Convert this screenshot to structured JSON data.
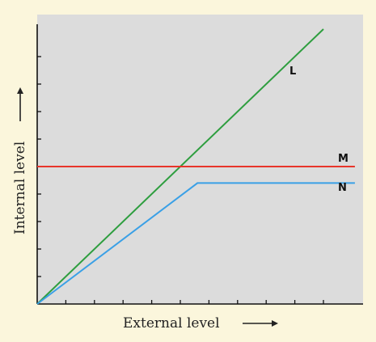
{
  "chart_data": {
    "type": "line",
    "title": "",
    "xlabel": "External level",
    "ylabel": "Internal level",
    "xlim": [
      0,
      10
    ],
    "ylim": [
      0,
      10
    ],
    "grid": false,
    "x_ticks": [
      1,
      2,
      3,
      4,
      5,
      6,
      7,
      8,
      9,
      10
    ],
    "y_ticks": [
      1,
      2,
      3,
      4,
      5,
      6,
      7,
      8,
      9
    ],
    "series": [
      {
        "name": "L",
        "color": "#2e9e3f",
        "points": [
          [
            0,
            0
          ],
          [
            10,
            10
          ]
        ]
      },
      {
        "name": "M",
        "color": "#e8352a",
        "points": [
          [
            0,
            5.0
          ],
          [
            11.1,
            5.0
          ]
        ]
      },
      {
        "name": "N",
        "color": "#3aa0e6",
        "points": [
          [
            0,
            0
          ],
          [
            5.6,
            4.4
          ],
          [
            11.1,
            4.4
          ]
        ]
      }
    ]
  },
  "colors": {
    "background": "#fbf6dc",
    "plot_area": "#dcdcdc",
    "axis": "#111111"
  }
}
